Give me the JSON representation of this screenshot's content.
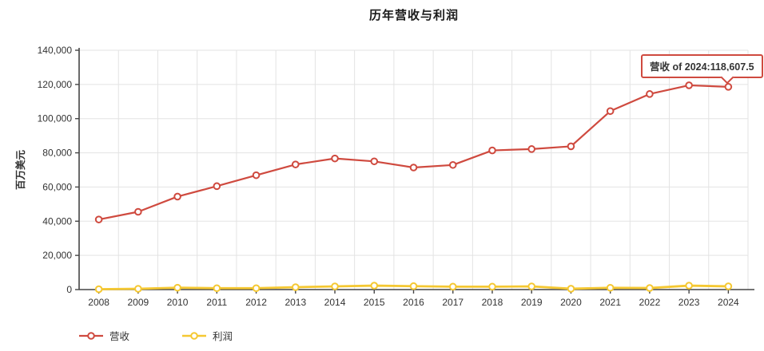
{
  "title": "历年营收与利润",
  "y_axis": {
    "label": "百万美元"
  },
  "tooltip": {
    "text": "营收 of 2024:118,607.5",
    "series": "营收",
    "year": "2024",
    "value": "118,607.5"
  },
  "colors": {
    "revenue": "#cf4a3f",
    "profit": "#f5c832",
    "grid": "#e3e3e3",
    "axis": "#454545",
    "text": "#333333",
    "tooltip_border": "#cf4a3f",
    "background": "#ffffff"
  },
  "chart_data": {
    "type": "line",
    "title": "历年营收与利润",
    "xlabel": "",
    "ylabel": "百万美元",
    "ylim": [
      0,
      140000
    ],
    "y_tick_step": 20000,
    "y_tick_labels": [
      "0",
      "20,000",
      "40,000",
      "60,000",
      "80,000",
      "100,000",
      "120,000",
      "140,000"
    ],
    "grid": true,
    "legend_position": "bottom-left",
    "categories": [
      "2008",
      "2009",
      "2010",
      "2011",
      "2012",
      "2013",
      "2014",
      "2015",
      "2016",
      "2017",
      "2018",
      "2019",
      "2020",
      "2021",
      "2022",
      "2023",
      "2024"
    ],
    "series": [
      {
        "key": "revenue",
        "name": "营收",
        "color": "#cf4a3f",
        "values": [
          41000,
          45500,
          54400,
          60500,
          66900,
          73200,
          76700,
          75000,
          71400,
          72900,
          81400,
          82200,
          83800,
          104400,
          114400,
          119500,
          118607.5
        ]
      },
      {
        "key": "profit",
        "name": "利润",
        "color": "#f5c832",
        "values": [
          200,
          450,
          1100,
          800,
          800,
          1400,
          1850,
          2300,
          2000,
          1700,
          1700,
          1850,
          500,
          1050,
          900,
          2300,
          1900
        ]
      }
    ]
  }
}
